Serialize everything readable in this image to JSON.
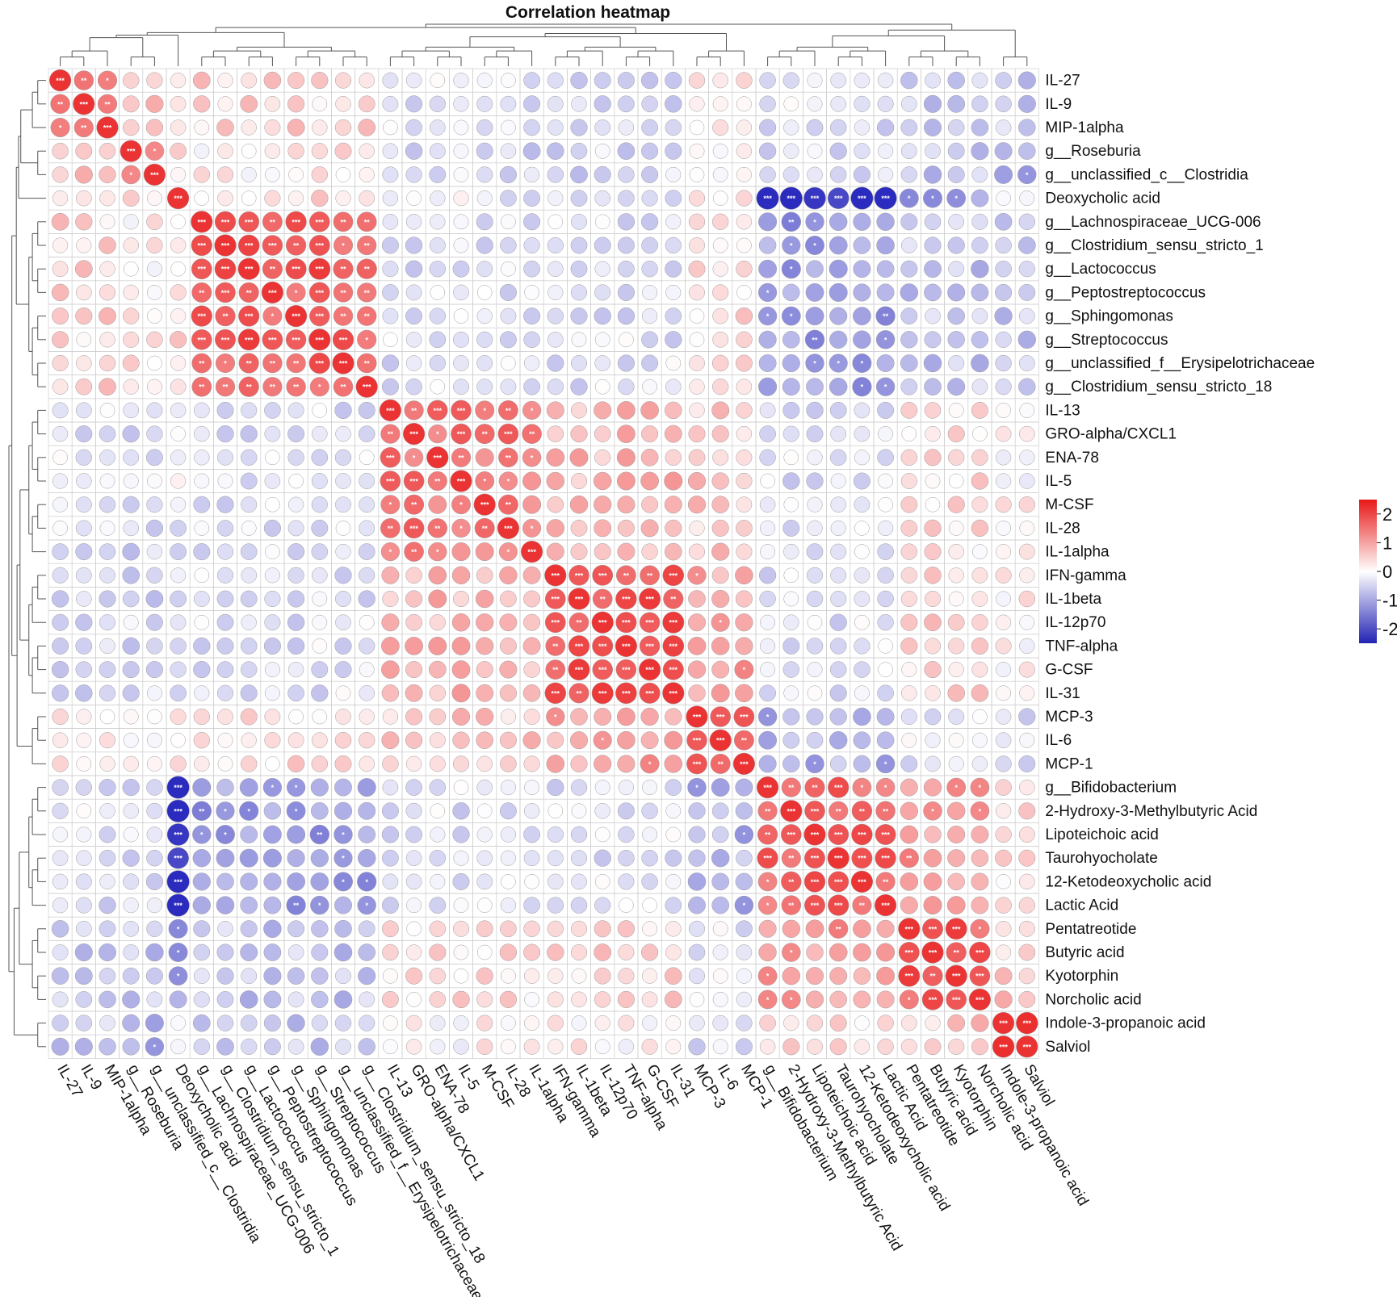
{
  "chart_data": {
    "type": "heatmap",
    "title": "Correlation heatmap",
    "labels": [
      "IL-27",
      "IL-9",
      "MIP-1alpha",
      "g__Roseburia",
      "g__unclassified_c__Clostridia",
      "Deoxycholic acid",
      "g__Lachnospiraceae_UCG-006",
      "g__Clostridium_sensu_stricto_1",
      "g__Lactococcus",
      "g__Peptostreptococcus",
      "g__Sphingomonas",
      "g__Streptococcus",
      "g__unclassified_f__Erysipelotrichaceae",
      "g__Clostridium_sensu_stricto_18",
      "IL-13",
      "GRO-alpha/CXCL1",
      "ENA-78",
      "IL-5",
      "M-CSF",
      "IL-28",
      "IL-1alpha",
      "IFN-gamma",
      "IL-1beta",
      "IL-12p70",
      "TNF-alpha",
      "G-CSF",
      "IL-31",
      "MCP-3",
      "IL-6",
      "MCP-1",
      "g__Bifidobacterium",
      "2-Hydroxy-3-Methylbutyric Acid",
      "Lipoteichoic acid",
      "Taurohyocholate",
      "12-Ketodeoxycholic acid",
      "Lactic Acid",
      "Pentatreotide",
      "Butyric acid",
      "Kyotorphin",
      "Norcholic acid",
      "Indole-3-propanoic acid",
      "Salviol"
    ],
    "groups": [
      [
        0,
        2
      ],
      [
        3,
        4
      ],
      [
        5,
        5
      ],
      [
        6,
        13
      ],
      [
        14,
        20
      ],
      [
        21,
        26
      ],
      [
        27,
        29
      ],
      [
        30,
        35
      ],
      [
        36,
        39
      ],
      [
        40,
        41
      ]
    ],
    "block_values": [
      [
        1.6,
        0.6,
        0.5,
        0.4,
        -0.3,
        -0.5,
        0.1,
        -0.3,
        -0.5,
        -0.6
      ],
      [
        0.6,
        1.5,
        0.3,
        0.2,
        -0.4,
        -0.4,
        -0.1,
        -0.4,
        -0.6,
        -0.8
      ],
      [
        0.5,
        0.3,
        2.0,
        0.3,
        -0.2,
        -0.2,
        0.2,
        -2.2,
        -1.0,
        -0.4
      ],
      [
        0.4,
        0.2,
        0.3,
        1.6,
        -0.3,
        -0.3,
        0.3,
        -1.0,
        -0.6,
        -0.6
      ],
      [
        -0.3,
        -0.4,
        -0.2,
        -0.3,
        1.3,
        0.7,
        0.5,
        -0.3,
        0.3,
        0.1
      ],
      [
        -0.5,
        -0.4,
        -0.2,
        -0.3,
        0.7,
        1.6,
        0.9,
        -0.3,
        0.4,
        0.1
      ],
      [
        0.1,
        -0.1,
        0.2,
        0.3,
        0.5,
        0.9,
        1.6,
        -0.8,
        -0.2,
        -0.4
      ],
      [
        -0.3,
        -0.4,
        -2.2,
        -1.0,
        -0.3,
        -0.3,
        -0.8,
        1.5,
        1.0,
        0.3
      ],
      [
        -0.5,
        -0.6,
        -1.0,
        -0.6,
        0.3,
        0.4,
        -0.2,
        1.0,
        1.6,
        0.5
      ],
      [
        -0.6,
        -0.8,
        -0.4,
        -0.6,
        0.1,
        0.1,
        -0.4,
        0.3,
        0.5,
        1.8
      ]
    ],
    "diagonal_value": 2.0,
    "colorbar": {
      "min": -2.5,
      "max": 2.5,
      "ticks": [
        2,
        1,
        0,
        -1,
        -2
      ]
    },
    "colors": {
      "low": "#2b2bbf",
      "mid": "#ffffff",
      "high": "#ea1f1f"
    },
    "significance_marks": [
      "*",
      "**",
      "***"
    ],
    "dendrogram": "both"
  }
}
